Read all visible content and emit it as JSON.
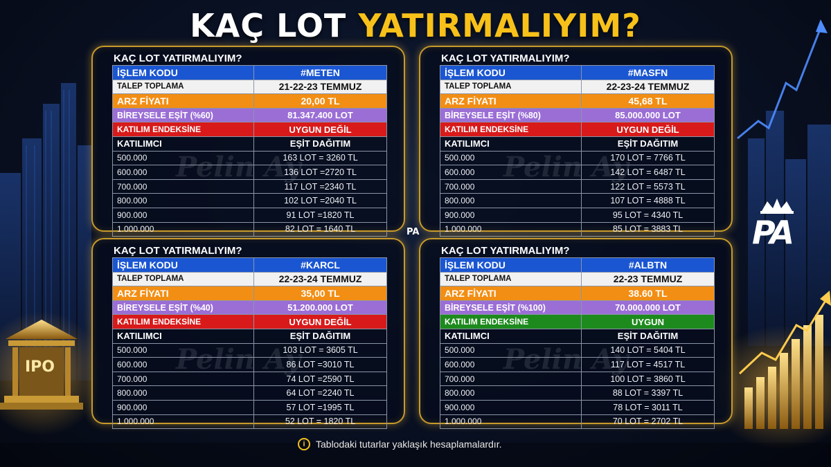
{
  "title": {
    "part1": "KAÇ LOT ",
    "part2": "YATIRMALIYIM?"
  },
  "colors": {
    "accent_gold": "#f7c11a",
    "blue": "#1a56d2",
    "orange": "#f28e14",
    "purple": "#9b6ed6",
    "red": "#d81a1a",
    "green": "#1d8a1d"
  },
  "watermark": "Pelin Ay",
  "center_logo": "PA",
  "brand_logo": "PA",
  "footnote": "Tablodaki tutarlar yaklaşık hesaplamalardır.",
  "panels": [
    {
      "heading": "KAÇ LOT YATIRMALIYIM?",
      "islem_label": "İŞLEM KODU",
      "islem_value": "#METEN",
      "talep_label": "TALEP TOPLAMA",
      "talep_value": "21-22-23 TEMMUZ",
      "arz_label": "ARZ FİYATI",
      "arz_value": "20,00 TL",
      "bireysel_label": "BİREYSELE EŞİT (%60)",
      "bireysel_value": "81.347.400 LOT",
      "endeks_label": "KATILIM ENDEKSİNE",
      "endeks_value": "UYGUN DEĞİL",
      "endeks_status": "red",
      "col1": "KATILIMCI",
      "col2": "EŞİT DAĞITIM",
      "rows": [
        [
          "500.000",
          "163 LOT = 3260 TL"
        ],
        [
          "600.000",
          "136 LOT =2720 TL"
        ],
        [
          "700.000",
          "117 LOT =2340 TL"
        ],
        [
          "800.000",
          "102 LOT =2040 TL"
        ],
        [
          "900.000",
          "91 LOT =1820 TL"
        ],
        [
          "1.000.000",
          "82 LOT = 1640 TL"
        ]
      ]
    },
    {
      "heading": "KAÇ LOT YATIRMALIYIM?",
      "islem_label": "İŞLEM KODU",
      "islem_value": "#MASFN",
      "talep_label": "TALEP TOPLAMA",
      "talep_value": "22-23-24  TEMMUZ",
      "arz_label": "ARZ FİYATI",
      "arz_value": "45,68 TL",
      "bireysel_label": "BİREYSELE EŞİT (%80)",
      "bireysel_value": "85.000.000 LOT",
      "endeks_label": "KATILIM ENDEKSİNE",
      "endeks_value": "UYGUN DEĞİL",
      "endeks_status": "red",
      "col1": "KATILIMCI",
      "col2": "EŞİT DAĞITIM",
      "rows": [
        [
          "500.000",
          "170 LOT = 7766 TL"
        ],
        [
          "600.000",
          "142 LOT = 6487 TL"
        ],
        [
          "700.000",
          "122 LOT = 5573 TL"
        ],
        [
          "800.000",
          "107 LOT = 4888 TL"
        ],
        [
          "900.000",
          "95 LOT = 4340 TL"
        ],
        [
          "1.000.000",
          "85 LOT = 3883 TL"
        ]
      ]
    },
    {
      "heading": "KAÇ LOT YATIRMALIYIM?",
      "islem_label": "İŞLEM KODU",
      "islem_value": "#KARCL",
      "talep_label": "TALEP TOPLAMA",
      "talep_value": "22-23-24 TEMMUZ",
      "arz_label": "ARZ FİYATI",
      "arz_value": "35,00 TL",
      "bireysel_label": "BİREYSELE EŞİT (%40)",
      "bireysel_value": "51.200.000 LOT",
      "endeks_label": "KATILIM ENDEKSİNE",
      "endeks_value": "UYGUN DEĞİL",
      "endeks_status": "red",
      "col1": "KATILIMCI",
      "col2": "EŞİT DAĞITIM",
      "rows": [
        [
          "500.000",
          "103 LOT = 3605 TL"
        ],
        [
          "600.000",
          "86 LOT =3010 TL"
        ],
        [
          "700.000",
          "74 LOT =2590 TL"
        ],
        [
          "800.000",
          "64 LOT =2240 TL"
        ],
        [
          "900.000",
          "57 LOT =1995 TL"
        ],
        [
          "1.000.000",
          "52 LOT = 1820 TL"
        ]
      ]
    },
    {
      "heading": "KAÇ LOT YATIRMALIYIM?",
      "islem_label": "İŞLEM KODU",
      "islem_value": "#ALBTN",
      "talep_label": "TALEP TOPLAMA",
      "talep_value": "22-23  TEMMUZ",
      "arz_label": "ARZ FİYATI",
      "arz_value": "38.60 TL",
      "bireysel_label": "BİREYSELE EŞİT (%100)",
      "bireysel_value": "70.000.000 LOT",
      "endeks_label": "KATILIM ENDEKSİNE",
      "endeks_value": "UYGUN",
      "endeks_status": "green",
      "col1": "KATILIMCI",
      "col2": "EŞİT DAĞITIM",
      "rows": [
        [
          "500.000",
          "140 LOT = 5404 TL"
        ],
        [
          "600.000",
          "117 LOT = 4517 TL"
        ],
        [
          "700.000",
          "100 LOT = 3860 TL"
        ],
        [
          "800.000",
          "88 LOT = 3397 TL"
        ],
        [
          "900.000",
          "78 LOT = 3011 TL"
        ],
        [
          "1.000.000",
          "70 LOT = 2702 TL"
        ]
      ]
    }
  ],
  "ipo_label": "IPO"
}
